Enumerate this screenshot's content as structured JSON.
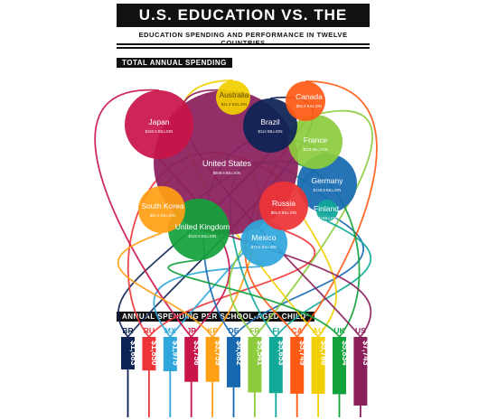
{
  "header": {
    "title": "U.S. EDUCATION VS. THE WORLD",
    "subtitle": "EDUCATION SPENDING AND PERFORMANCE IN TWELVE COUNTRIES"
  },
  "sections": {
    "total": "TOTAL ANNUAL SPENDING",
    "per_child": "ANNUAL SPENDING PER SCHOOL-AGED CHILD*"
  },
  "colors": {
    "US": "#8b1f5c",
    "JP": "#c9144a",
    "AU": "#f2cf00",
    "BR": "#0d2255",
    "CA": "#ff5a14",
    "FR": "#8ccc3d",
    "DE": "#1669b0",
    "FI": "#11a89a",
    "RU": "#ee3436",
    "KP": "#ff9f14",
    "UK": "#13a13c",
    "MX": "#2fa6dc"
  },
  "chart_data": [
    {
      "type": "bubble",
      "title": "TOTAL ANNUAL SPENDING",
      "unit": "BILLION",
      "series": [
        {
          "code": "US",
          "name": "United States",
          "value_label": "$809.6 BILLION",
          "value": 809.6
        },
        {
          "code": "JP",
          "name": "Japan",
          "value_label": "$160.5 BILLION",
          "value": 160.5
        },
        {
          "code": "UK",
          "name": "United Kingdom",
          "value_label": "$122.6 BILLION",
          "value": 122.6
        },
        {
          "code": "FR",
          "name": "France",
          "value_label": "$121 BILLION",
          "value": 121
        },
        {
          "code": "DE",
          "name": "Germany",
          "value_label": "$129.8 BILLION",
          "value": 129.8
        },
        {
          "code": "BR",
          "name": "Brazil",
          "value_label": "$114 BILLION",
          "value": 114
        },
        {
          "code": "MX",
          "name": "Mexico",
          "value_label": "$74.9 BILLION",
          "value": 74.9
        },
        {
          "code": "CA",
          "name": "Canada",
          "value_label": "$65.4 BILLION",
          "value": 65.4
        },
        {
          "code": "RU",
          "name": "Russia",
          "value_label": "$56.9 BILLION",
          "value": 56.9
        },
        {
          "code": "KP",
          "name": "South Korea",
          "value_label": "$61.6 BILLION",
          "value": 61.6
        },
        {
          "code": "AU",
          "name": "Australia",
          "value_label": "$41.8 BILLION",
          "value": 41.8
        },
        {
          "code": "FI",
          "name": "Finland",
          "value_label": "$10 BILLION",
          "value": 10
        }
      ]
    },
    {
      "type": "bar",
      "title": "ANNUAL SPENDING PER SCHOOL-AGED CHILD*",
      "categories": [
        "BR",
        "RU",
        "MX",
        "JP",
        "KP",
        "DE",
        "FR",
        "FI",
        "CA",
        "AU",
        "UK",
        "US"
      ],
      "value_labels": [
        "$1,683",
        "$1,850",
        "$1,975",
        "$3,756",
        "$3,759",
        "$4,682",
        "$5,541",
        "$5,653",
        "$5,749",
        "$5,766",
        "$5,834",
        "$7,743"
      ],
      "values": [
        1683,
        1850,
        1975,
        3756,
        3759,
        4682,
        5541,
        5653,
        5749,
        5766,
        5834,
        7743
      ]
    }
  ]
}
